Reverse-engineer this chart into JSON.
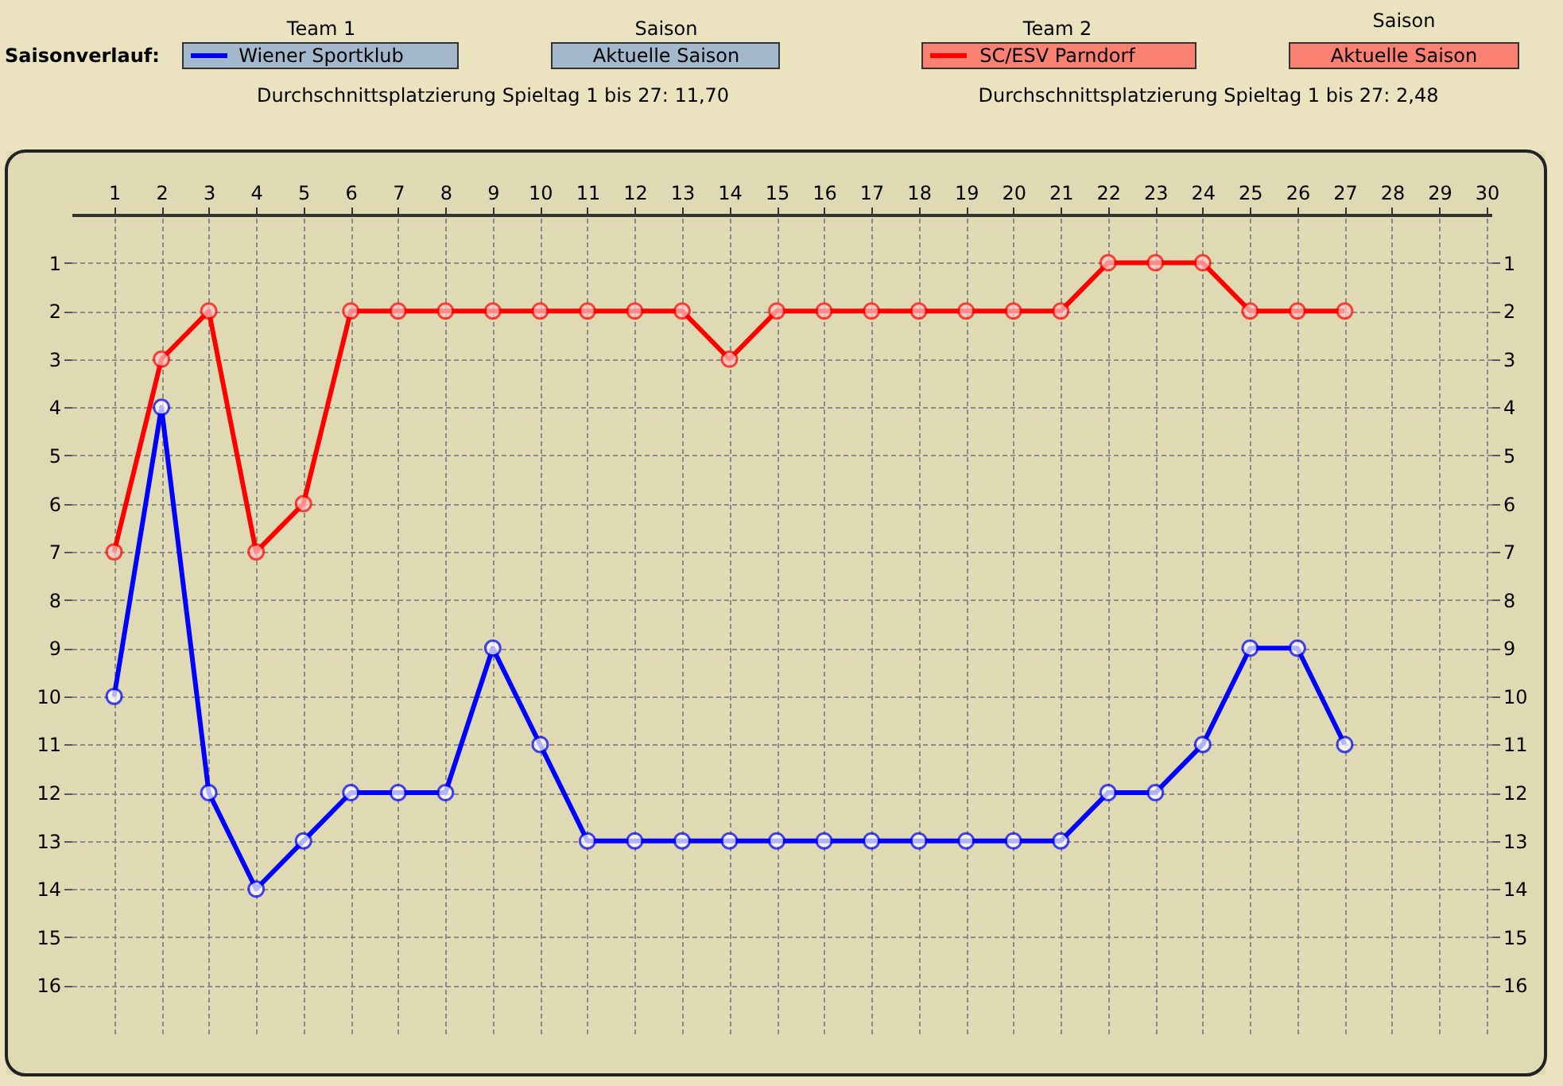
{
  "chart_data": {
    "type": "line",
    "x": [
      1,
      2,
      3,
      4,
      5,
      6,
      7,
      8,
      9,
      10,
      11,
      12,
      13,
      14,
      15,
      16,
      17,
      18,
      19,
      20,
      21,
      22,
      23,
      24,
      25,
      26,
      27
    ],
    "series": [
      {
        "name": "Wiener Sportklub",
        "color": "#0000ff",
        "values": [
          10,
          4,
          12,
          14,
          13,
          12,
          12,
          12,
          9,
          11,
          13,
          13,
          13,
          13,
          13,
          13,
          13,
          13,
          13,
          13,
          13,
          12,
          12,
          11,
          9,
          9,
          11
        ]
      },
      {
        "name": "SC/ESV Parndorf",
        "color": "#ff0000",
        "values": [
          7,
          3,
          2,
          7,
          6,
          2,
          2,
          2,
          2,
          2,
          2,
          2,
          2,
          3,
          2,
          2,
          2,
          2,
          2,
          2,
          2,
          1,
          1,
          1,
          2,
          2,
          2
        ]
      }
    ],
    "xlim": [
      0.1,
      30.1
    ],
    "xticks": [
      1,
      2,
      3,
      4,
      5,
      6,
      7,
      8,
      9,
      10,
      11,
      12,
      13,
      14,
      15,
      16,
      17,
      18,
      19,
      20,
      21,
      22,
      23,
      24,
      25,
      26,
      27,
      28,
      29,
      30
    ],
    "ylim": [
      17,
      0
    ],
    "yticks": [
      1,
      2,
      3,
      4,
      5,
      6,
      7,
      8,
      9,
      10,
      11,
      12,
      13,
      14,
      15,
      16
    ],
    "y2lim": [
      17,
      0
    ],
    "y2ticks": [
      1,
      2,
      3,
      4,
      5,
      6,
      7,
      8,
      9,
      10,
      11,
      12,
      13,
      14,
      15,
      16
    ],
    "grid": true,
    "marker": "circle",
    "line_style": "solid",
    "legend": "top",
    "annotations": [
      "Saisonverlauf:",
      "Team 1",
      "Saison",
      "Aktuelle Saison",
      "Team 2",
      "Saison",
      "Aktuelle Saison",
      "Durchschnittsplatzierung Spieltag 1 bis 27: 11,70",
      "Durchschnittsplatzierung Spieltag 1 bis 27:  2,48"
    ]
  }
}
